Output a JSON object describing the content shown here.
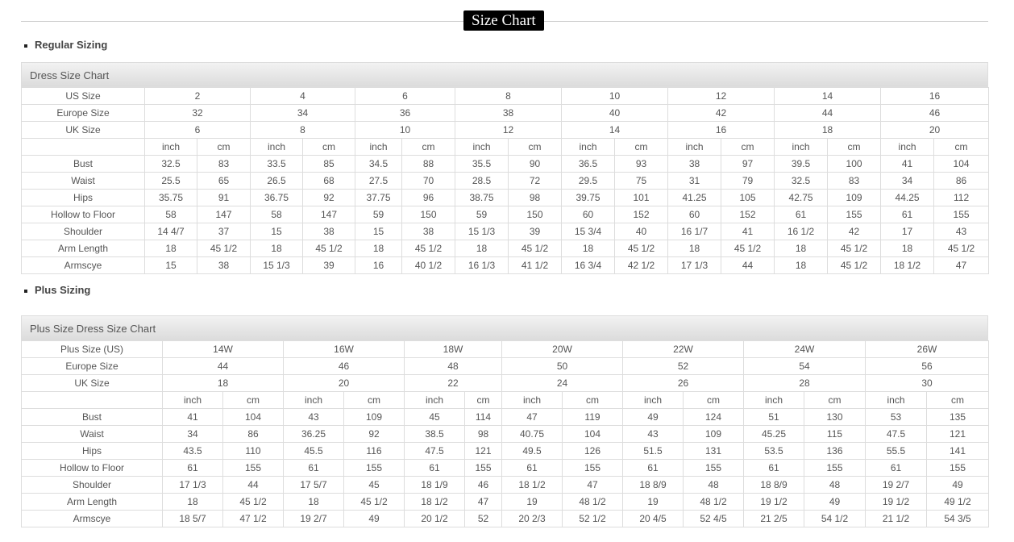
{
  "page_title": "Size Chart",
  "regular": {
    "section_label": "Regular Sizing",
    "chart_title": "Dress Size Chart",
    "size_rows": [
      {
        "label": "US Size",
        "values": [
          "2",
          "4",
          "6",
          "8",
          "10",
          "12",
          "14",
          "16"
        ]
      },
      {
        "label": "Europe Size",
        "values": [
          "32",
          "34",
          "36",
          "38",
          "40",
          "42",
          "44",
          "46"
        ]
      },
      {
        "label": "UK Size",
        "values": [
          "6",
          "8",
          "10",
          "12",
          "14",
          "16",
          "18",
          "20"
        ]
      }
    ],
    "units": [
      "inch",
      "cm"
    ],
    "measure_rows": [
      {
        "label": "Bust",
        "values": [
          "32.5",
          "83",
          "33.5",
          "85",
          "34.5",
          "88",
          "35.5",
          "90",
          "36.5",
          "93",
          "38",
          "97",
          "39.5",
          "100",
          "41",
          "104"
        ]
      },
      {
        "label": "Waist",
        "values": [
          "25.5",
          "65",
          "26.5",
          "68",
          "27.5",
          "70",
          "28.5",
          "72",
          "29.5",
          "75",
          "31",
          "79",
          "32.5",
          "83",
          "34",
          "86"
        ]
      },
      {
        "label": "Hips",
        "values": [
          "35.75",
          "91",
          "36.75",
          "92",
          "37.75",
          "96",
          "38.75",
          "98",
          "39.75",
          "101",
          "41.25",
          "105",
          "42.75",
          "109",
          "44.25",
          "112"
        ]
      },
      {
        "label": "Hollow to Floor",
        "values": [
          "58",
          "147",
          "58",
          "147",
          "59",
          "150",
          "59",
          "150",
          "60",
          "152",
          "60",
          "152",
          "61",
          "155",
          "61",
          "155"
        ]
      },
      {
        "label": "Shoulder",
        "values": [
          "14 4/7",
          "37",
          "15",
          "38",
          "15",
          "38",
          "15 1/3",
          "39",
          "15 3/4",
          "40",
          "16 1/7",
          "41",
          "16 1/2",
          "42",
          "17",
          "43"
        ]
      },
      {
        "label": "Arm Length",
        "values": [
          "18",
          "45 1/2",
          "18",
          "45 1/2",
          "18",
          "45 1/2",
          "18",
          "45 1/2",
          "18",
          "45 1/2",
          "18",
          "45 1/2",
          "18",
          "45 1/2",
          "18",
          "45 1/2"
        ]
      },
      {
        "label": "Armscye",
        "values": [
          "15",
          "38",
          "15 1/3",
          "39",
          "16",
          "40 1/2",
          "16 1/3",
          "41 1/2",
          "16 3/4",
          "42 1/2",
          "17 1/3",
          "44",
          "18",
          "45 1/2",
          "18 1/2",
          "47"
        ]
      }
    ]
  },
  "plus": {
    "section_label": "Plus Sizing",
    "chart_title": "Plus Size Dress Size Chart",
    "size_rows": [
      {
        "label": "Plus Size (US)",
        "values": [
          "14W",
          "16W",
          "18W",
          "20W",
          "22W",
          "24W",
          "26W"
        ]
      },
      {
        "label": "Europe Size",
        "values": [
          "44",
          "46",
          "48",
          "50",
          "52",
          "54",
          "56"
        ]
      },
      {
        "label": "UK Size",
        "values": [
          "18",
          "20",
          "22",
          "24",
          "26",
          "28",
          "30"
        ]
      }
    ],
    "units": [
      "inch",
      "cm"
    ],
    "measure_rows": [
      {
        "label": "Bust",
        "values": [
          "41",
          "104",
          "43",
          "109",
          "45",
          "114",
          "47",
          "119",
          "49",
          "124",
          "51",
          "130",
          "53",
          "135"
        ]
      },
      {
        "label": "Waist",
        "values": [
          "34",
          "86",
          "36.25",
          "92",
          "38.5",
          "98",
          "40.75",
          "104",
          "43",
          "109",
          "45.25",
          "115",
          "47.5",
          "121"
        ]
      },
      {
        "label": "Hips",
        "values": [
          "43.5",
          "110",
          "45.5",
          "116",
          "47.5",
          "121",
          "49.5",
          "126",
          "51.5",
          "131",
          "53.5",
          "136",
          "55.5",
          "141"
        ]
      },
      {
        "label": "Hollow to Floor",
        "values": [
          "61",
          "155",
          "61",
          "155",
          "61",
          "155",
          "61",
          "155",
          "61",
          "155",
          "61",
          "155",
          "61",
          "155"
        ]
      },
      {
        "label": "Shoulder",
        "values": [
          "17 1/3",
          "44",
          "17 5/7",
          "45",
          "18 1/9",
          "46",
          "18 1/2",
          "47",
          "18 8/9",
          "48",
          "18 8/9",
          "48",
          "19 2/7",
          "49"
        ]
      },
      {
        "label": "Arm Length",
        "values": [
          "18",
          "45 1/2",
          "18",
          "45 1/2",
          "18 1/2",
          "47",
          "19",
          "48 1/2",
          "19",
          "48 1/2",
          "19 1/2",
          "49",
          "19 1/2",
          "49 1/2"
        ]
      },
      {
        "label": "Armscye",
        "values": [
          "18 5/7",
          "47 1/2",
          "19 2/7",
          "49",
          "20 1/2",
          "52",
          "20 2/3",
          "52 1/2",
          "20 4/5",
          "52 4/5",
          "21 2/5",
          "54 1/2",
          "21 1/2",
          "54 3/5"
        ]
      }
    ]
  }
}
